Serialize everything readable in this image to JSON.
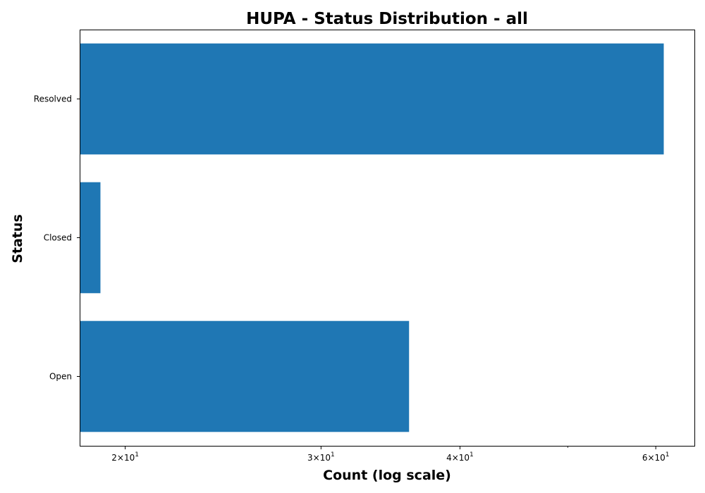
{
  "chart_data": {
    "type": "bar",
    "orientation": "horizontal",
    "title": "HUPA - Status Distribution - all",
    "xlabel": "Count (log scale)",
    "ylabel": "Status",
    "x_scale": "log",
    "xlim": [
      18.2,
      65.0
    ],
    "categories": [
      "Open",
      "Closed",
      "Resolved"
    ],
    "values": [
      36,
      19,
      61
    ],
    "x_ticks": [
      {
        "value": 20,
        "mantissa": "2",
        "base": "10",
        "exp": "1"
      },
      {
        "value": 30,
        "mantissa": "3",
        "base": "10",
        "exp": "1"
      },
      {
        "value": 40,
        "mantissa": "4",
        "base": "10",
        "exp": "1"
      },
      {
        "value": 60,
        "mantissa": "6",
        "base": "10",
        "exp": "1"
      }
    ],
    "x_minor_ticks": [
      50
    ],
    "bar_color": "#1f77b4",
    "grid": false
  }
}
